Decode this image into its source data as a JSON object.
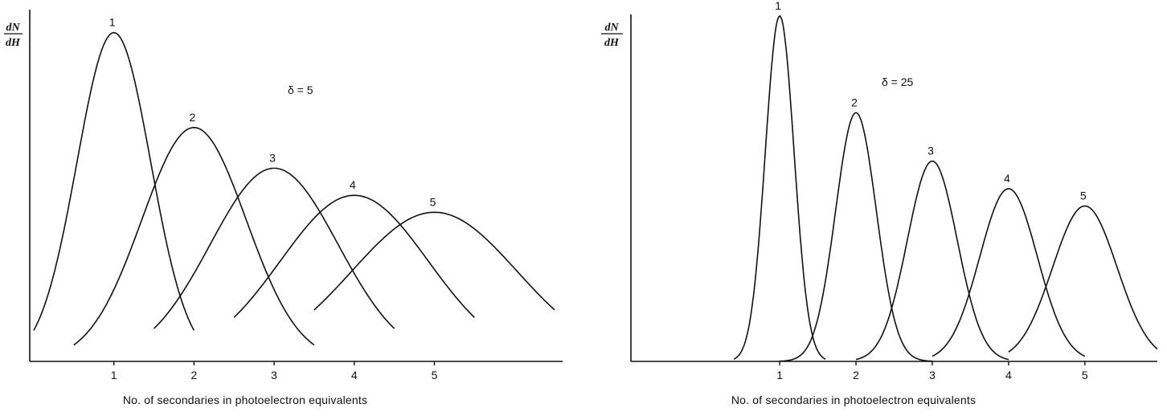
{
  "chart_data": [
    {
      "type": "line",
      "ylabel_num": "dN",
      "ylabel_den": "dH",
      "xlabel": "No. of secondaries in photoelectron equivalents",
      "annotation": "δ = 5",
      "xlim": [
        -0.05,
        6.6
      ],
      "ylim": [
        0,
        1.0
      ],
      "x_ticks": [
        "1",
        "2",
        "3",
        "4",
        "5"
      ],
      "x_tick_values": [
        1,
        2,
        3,
        4,
        5
      ],
      "series": [
        {
          "name": "1",
          "peak_x": 1,
          "peak_y": 0.97,
          "x_range": [
            0.0,
            2.0
          ]
        },
        {
          "name": "2",
          "peak_x": 2,
          "peak_y": 0.69,
          "x_range": [
            0.5,
            3.5
          ]
        },
        {
          "name": "3",
          "peak_x": 3,
          "peak_y": 0.57,
          "x_range": [
            1.5,
            4.5
          ]
        },
        {
          "name": "4",
          "peak_x": 4,
          "peak_y": 0.49,
          "x_range": [
            2.5,
            5.5
          ]
        },
        {
          "name": "5",
          "peak_x": 5,
          "peak_y": 0.44,
          "x_range": [
            3.5,
            6.5
          ]
        }
      ]
    },
    {
      "type": "line",
      "ylabel_num": "dN",
      "ylabel_den": "dH",
      "xlabel": "No. of secondaries in photoelectron equivalents",
      "annotation": "δ = 25",
      "xlim": [
        -0.95,
        5.95
      ],
      "ylim": [
        0,
        1.0
      ],
      "x_ticks": [
        "1",
        "2",
        "3",
        "4",
        "5"
      ],
      "x_tick_values": [
        1,
        2,
        3,
        4,
        5
      ],
      "series": [
        {
          "name": "1",
          "peak_x": 1,
          "peak_y": 1.0,
          "x_range": [
            0.4,
            1.6
          ]
        },
        {
          "name": "2",
          "peak_x": 2,
          "peak_y": 0.72,
          "x_range": [
            1.0,
            3.0
          ]
        },
        {
          "name": "3",
          "peak_x": 3,
          "peak_y": 0.58,
          "x_range": [
            2.0,
            4.0
          ]
        },
        {
          "name": "4",
          "peak_x": 4,
          "peak_y": 0.5,
          "x_range": [
            3.0,
            5.0
          ]
        },
        {
          "name": "5",
          "peak_x": 5,
          "peak_y": 0.45,
          "x_range": [
            4.0,
            5.95
          ]
        }
      ]
    }
  ]
}
